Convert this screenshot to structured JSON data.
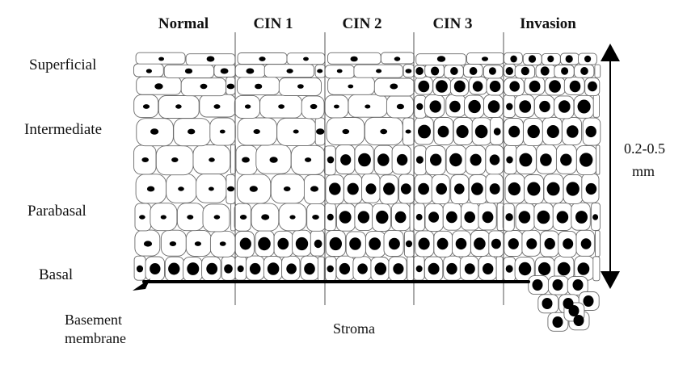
{
  "stages": [
    "Normal",
    "CIN 1",
    "CIN 2",
    "CIN 3",
    "Invasion"
  ],
  "layers": [
    "Superficial",
    "Intermediate",
    "Parabasal",
    "Basal"
  ],
  "basement_label": {
    "line1": "Basement",
    "line2": "membrane"
  },
  "stroma_label": "Stroma",
  "thickness_label": {
    "line1": "0.2-0.5",
    "line2": "mm"
  },
  "colors": {
    "nucleus": "#000000",
    "cell_outline": "#6a6a6a",
    "membrane": "#000000"
  }
}
